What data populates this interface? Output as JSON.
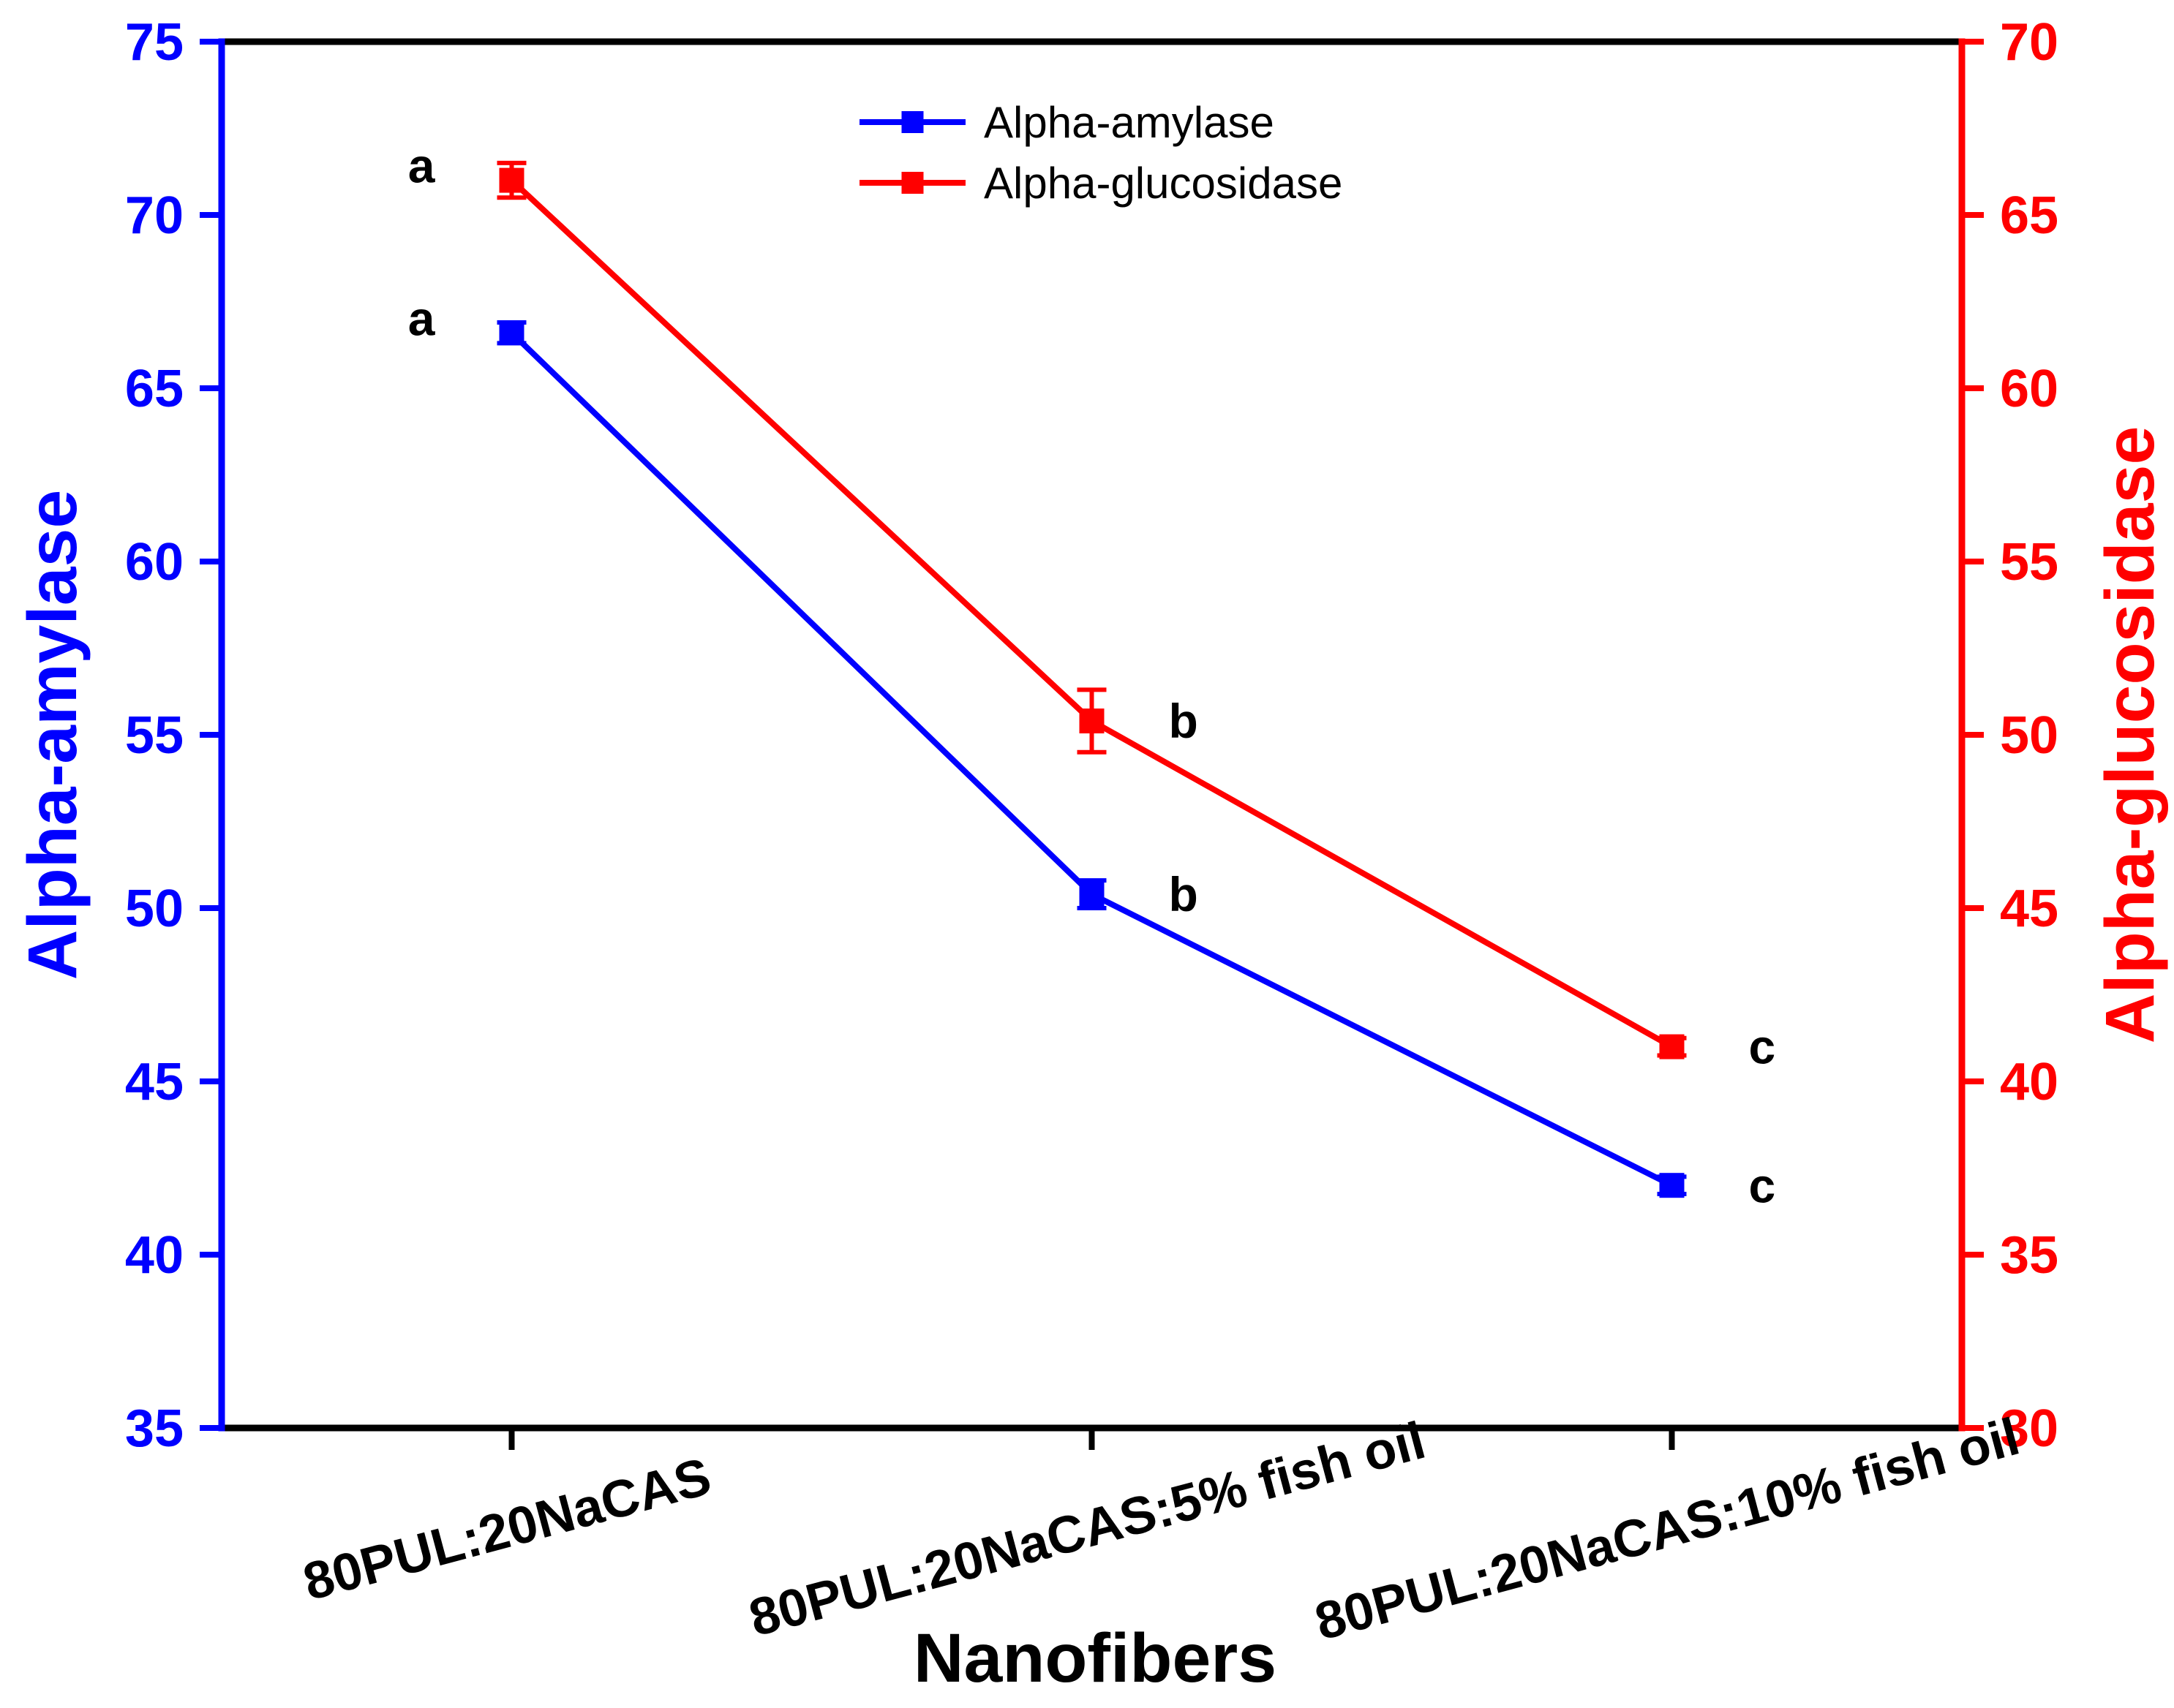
{
  "chart_data": {
    "type": "line",
    "title": "",
    "xlabel": "Nanofibers",
    "categories": [
      "80PUL:20NaCAS",
      "80PUL:20NaCAS:5% fish oil",
      "80PUL:20NaCAS:10% fish oil"
    ],
    "left_axis": {
      "label": "Alpha-amylase",
      "color": "#0000ff",
      "min": 35,
      "max": 75,
      "ticks": [
        35,
        40,
        45,
        50,
        55,
        60,
        65,
        70,
        75
      ]
    },
    "right_axis": {
      "label": "Alpha-glucosidase",
      "color": "#ff0000",
      "min": 30,
      "max": 70,
      "ticks": [
        30,
        35,
        40,
        45,
        50,
        55,
        60,
        65,
        70
      ]
    },
    "series": [
      {
        "name": "Alpha-amylase",
        "axis": "left",
        "color": "#0000ff",
        "marker": "square",
        "values": [
          66.6,
          50.4,
          42.0
        ],
        "errors": [
          0.3,
          0.4,
          0.25
        ],
        "letters": [
          "a",
          "b",
          "c"
        ],
        "letter_side": [
          "left",
          "right",
          "right"
        ]
      },
      {
        "name": "Alpha-glucosidase",
        "axis": "right",
        "color": "#ff0000",
        "marker": "square",
        "values": [
          66.0,
          50.4,
          41.0
        ],
        "errors": [
          0.5,
          0.9,
          0.25
        ],
        "letters": [
          "a",
          "b",
          "c"
        ],
        "letter_side": [
          "left",
          "right",
          "right"
        ]
      }
    ],
    "legend": {
      "position": "top-center",
      "entries": [
        "Alpha-amylase",
        "Alpha-glucosidase"
      ]
    },
    "grid": false,
    "frame_colors": {
      "top": "#000000",
      "bottom": "#000000",
      "left": "#0000ff",
      "right": "#ff0000"
    }
  }
}
